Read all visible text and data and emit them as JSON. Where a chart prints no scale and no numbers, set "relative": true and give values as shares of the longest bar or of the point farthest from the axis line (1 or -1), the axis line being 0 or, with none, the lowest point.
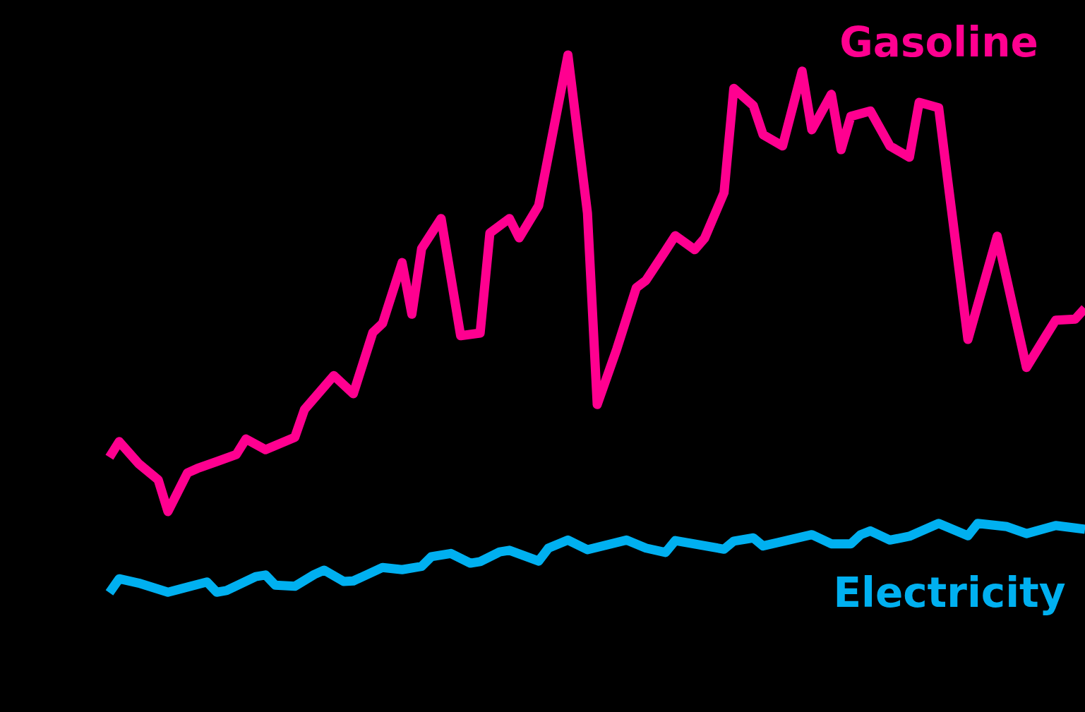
{
  "chart_data": {
    "type": "line",
    "relative": true,
    "tick_labels": false,
    "grid": false,
    "legend": false,
    "marker": "none",
    "line_style": "solid",
    "categories": [
      null,
      null,
      null,
      null,
      null,
      null,
      null,
      null,
      null,
      null,
      null,
      null,
      null,
      null,
      null,
      null,
      null,
      null,
      null,
      null,
      null,
      null,
      null,
      null,
      null,
      null,
      null,
      null,
      null,
      null,
      null,
      null,
      null,
      null,
      null,
      null,
      null,
      null,
      null,
      null,
      null,
      null,
      null,
      null,
      null,
      null,
      null,
      null,
      null,
      null,
      null,
      null,
      null,
      null,
      null,
      null,
      null,
      null,
      null,
      null,
      null,
      null,
      null,
      null,
      null,
      null,
      null,
      null,
      null,
      null,
      null,
      null,
      null,
      null,
      null,
      null,
      null,
      null,
      null,
      null,
      null,
      null,
      null,
      null,
      null,
      null,
      null,
      null,
      null,
      null,
      null,
      null,
      null,
      null,
      null,
      null,
      null,
      null,
      null,
      null,
      null
    ],
    "series": [
      {
        "name": "Gasoline",
        "color": "#ff0090",
        "values": [
          0.252,
          0.281,
          null,
          0.24,
          null,
          0.21,
          0.151,
          null,
          0.223,
          0.231,
          null,
          0.244,
          null,
          0.257,
          0.286,
          null,
          0.266,
          null,
          null,
          0.289,
          0.341,
          null,
          null,
          0.404,
          null,
          0.37,
          null,
          0.484,
          0.501,
          null,
          0.614,
          0.518,
          0.64,
          null,
          0.696,
          null,
          0.478,
          null,
          0.483,
          0.669,
          null,
          0.696,
          0.66,
          null,
          0.72,
          null,
          null,
          1,
          null,
          0.706,
          0.35,
          null,
          0.453,
          null,
          0.567,
          0.581,
          null,
          0.636,
          0.664,
          null,
          0.638,
          0.659,
          null,
          0.744,
          0.938,
          null,
          0.906,
          0.852,
          null,
          0.831,
          null,
          0.97,
          0.861,
          null,
          0.927,
          0.824,
          0.886,
          null,
          0.896,
          null,
          0.831,
          null,
          0.81,
          0.912,
          null,
          0.902,
          0.757,
          null,
          0.471,
          null,
          null,
          0.663,
          null,
          null,
          0.419,
          null,
          0.478,
          0.507,
          null,
          0.509,
          0.529
        ]
      },
      {
        "name": "Electricity",
        "color": "#00b0f0",
        "values": [
          0,
          0.026,
          null,
          0.018,
          null,
          null,
          0.001,
          null,
          null,
          null,
          0.02,
          0.001,
          0.004,
          null,
          null,
          0.03,
          0.033,
          0.014,
          null,
          0.012,
          null,
          0.034,
          0.042,
          null,
          0.021,
          0.022,
          null,
          null,
          0.047,
          null,
          0.043,
          null,
          0.049,
          0.067,
          null,
          0.073,
          null,
          0.055,
          0.058,
          null,
          0.076,
          0.079,
          null,
          null,
          0.059,
          0.083,
          null,
          0.098,
          null,
          0.08,
          null,
          null,
          null,
          0.098,
          null,
          0.083,
          null,
          0.075,
          0.097,
          null,
          null,
          null,
          null,
          0.081,
          0.096,
          null,
          0.102,
          0.087,
          null,
          null,
          null,
          null,
          0.108,
          null,
          0.091,
          null,
          0.091,
          0.108,
          0.115,
          null,
          0.098,
          null,
          0.105,
          null,
          null,
          0.129,
          null,
          null,
          0.106,
          0.129,
          null,
          null,
          0.123,
          null,
          0.11,
          null,
          null,
          0.125,
          null,
          null,
          0.118
        ]
      }
    ]
  }
}
